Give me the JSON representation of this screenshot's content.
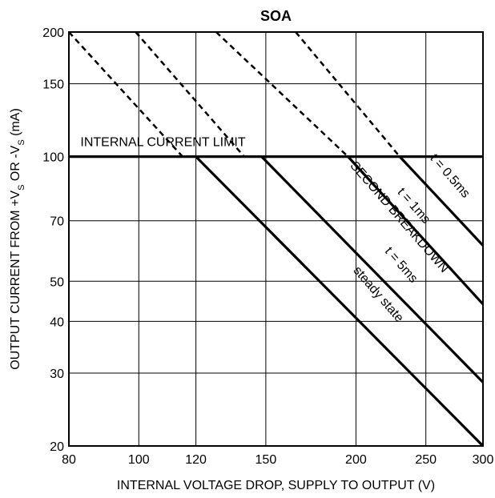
{
  "chart_data": {
    "type": "line",
    "title": "SOA",
    "xlabel": "INTERNAL VOLTAGE DROP, SUPPLY TO OUTPUT (V)",
    "ylabel_parts": [
      "OUTPUT CURRENT FROM +V",
      "S",
      " OR -V",
      "S",
      " (mA)"
    ],
    "xscale": "log",
    "yscale": "log",
    "xlim": [
      80,
      300
    ],
    "ylim": [
      20,
      200
    ],
    "grid": true,
    "x_ticks": [
      80,
      100,
      120,
      150,
      200,
      250,
      300
    ],
    "x_tick_labels": [
      "80",
      "100",
      "120",
      "150",
      "200",
      "250",
      "300"
    ],
    "y_ticks": [
      20,
      30,
      40,
      50,
      70,
      100,
      150,
      200
    ],
    "y_tick_labels": [
      "20",
      "30",
      "40",
      "50",
      "70",
      "100",
      "150",
      "200"
    ],
    "series": [
      {
        "key": "limit",
        "style": "solid",
        "x": [
          80,
          300
        ],
        "y": [
          100,
          100
        ]
      },
      {
        "key": "steady",
        "style": "solid",
        "x": [
          120,
          300
        ],
        "y": [
          100,
          20
        ]
      },
      {
        "key": "t5",
        "style": "solid",
        "x": [
          148,
          300
        ],
        "y": [
          100,
          28.5
        ]
      },
      {
        "key": "t1",
        "style": "solid",
        "x": [
          195,
          300
        ],
        "y": [
          100,
          44
        ]
      },
      {
        "key": "t05",
        "style": "solid",
        "x": [
          230,
          300
        ],
        "y": [
          100,
          61
        ]
      },
      {
        "key": "t1_dashed",
        "style": "dashed",
        "x": [
          80,
          115
        ],
        "y": [
          200,
          100
        ]
      },
      {
        "key": "t5_dashed",
        "style": "dashed",
        "x": [
          99,
          140
        ],
        "y": [
          200,
          100
        ]
      },
      {
        "key": "t05_dashed_a",
        "style": "dashed",
        "x": [
          128,
          195
        ],
        "y": [
          200,
          100
        ]
      },
      {
        "key": "t05_dashed_b",
        "style": "dashed",
        "x": [
          165,
          230
        ],
        "y": [
          200,
          100
        ]
      }
    ],
    "annotations": [
      {
        "key": "limit_label",
        "text": "INTERNAL CURRENT LIMIT",
        "x": 83,
        "y": 106,
        "angle": 0
      },
      {
        "key": "steady_label",
        "text": "steady state",
        "x": 198,
        "y": 53,
        "angle": 49
      },
      {
        "key": "t5_label",
        "text": "t = 5ms",
        "x": 219,
        "y": 59,
        "angle": 49
      },
      {
        "key": "second_breakdown_label",
        "text": "SECOND BREAKDOWN",
        "x": 196,
        "y": 95,
        "angle": 49
      },
      {
        "key": "t1_label",
        "text": "t = 1ms",
        "x": 228,
        "y": 82,
        "angle": 49
      },
      {
        "key": "t05_label",
        "text": "t = 0.5ms",
        "x": 253,
        "y": 99,
        "angle": 49
      }
    ]
  }
}
